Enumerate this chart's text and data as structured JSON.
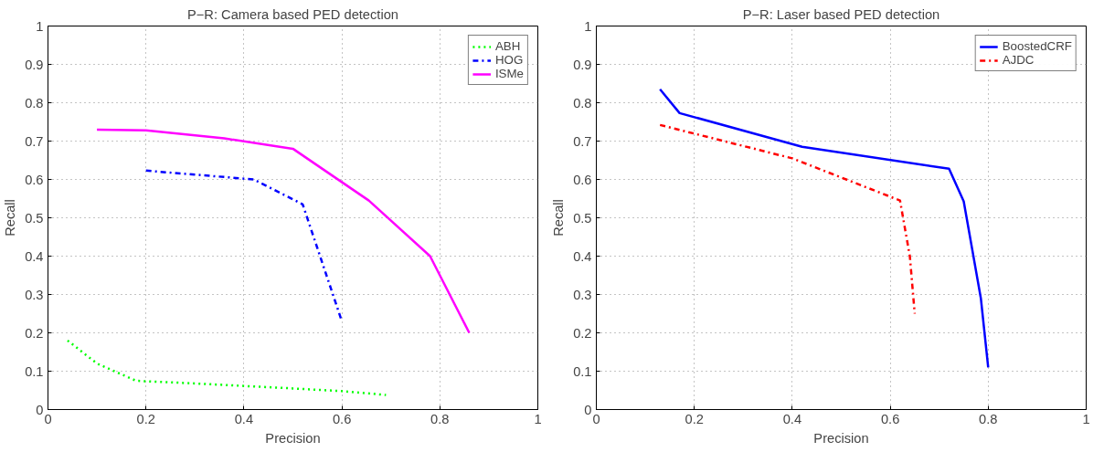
{
  "chart_data": [
    {
      "type": "line",
      "title": "P−R: Camera based PED detection",
      "xlabel": "Precision",
      "ylabel": "Recall",
      "xlim": [
        0,
        1
      ],
      "ylim": [
        0,
        1
      ],
      "xticks": [
        0,
        0.2,
        0.4,
        0.6,
        0.8,
        1
      ],
      "yticks": [
        0,
        0.1,
        0.2,
        0.3,
        0.4,
        0.5,
        0.6,
        0.7,
        0.8,
        0.9,
        1
      ],
      "grid": true,
      "legend": "top right",
      "series": [
        {
          "name": "ABH",
          "color": "#00ff00",
          "line_style": "dotted",
          "x": [
            0.04,
            0.1,
            0.18,
            0.3,
            0.5,
            0.6,
            0.69
          ],
          "values": [
            0.18,
            0.12,
            0.075,
            0.068,
            0.055,
            0.048,
            0.038
          ]
        },
        {
          "name": "HOG",
          "color": "#0000ff",
          "line_style": "dashdot",
          "x": [
            0.2,
            0.42,
            0.52,
            0.6
          ],
          "values": [
            0.623,
            0.6,
            0.535,
            0.23
          ]
        },
        {
          "name": "ISMe",
          "color": "#ff00ff",
          "line_style": "solid",
          "x": [
            0.1,
            0.2,
            0.36,
            0.5,
            0.655,
            0.78,
            0.86
          ],
          "values": [
            0.73,
            0.728,
            0.707,
            0.68,
            0.545,
            0.4,
            0.2
          ]
        }
      ]
    },
    {
      "type": "line",
      "title": "P−R: Laser based PED detection",
      "xlabel": "Precision",
      "ylabel": "Recall",
      "xlim": [
        0,
        1
      ],
      "ylim": [
        0,
        1
      ],
      "xticks": [
        0,
        0.2,
        0.4,
        0.6,
        0.8,
        1
      ],
      "yticks": [
        0,
        0.1,
        0.2,
        0.3,
        0.4,
        0.5,
        0.6,
        0.7,
        0.8,
        0.9,
        1
      ],
      "grid": true,
      "legend": "top right",
      "series": [
        {
          "name": "BoostedCRF",
          "color": "#0000ff",
          "line_style": "solid",
          "x": [
            0.13,
            0.17,
            0.42,
            0.72,
            0.75,
            0.785,
            0.8
          ],
          "values": [
            0.835,
            0.773,
            0.685,
            0.628,
            0.543,
            0.29,
            0.11
          ]
        },
        {
          "name": "AJDC",
          "color": "#ff0000",
          "line_style": "dashdot",
          "x": [
            0.13,
            0.4,
            0.62,
            0.64,
            0.65
          ],
          "values": [
            0.742,
            0.655,
            0.545,
            0.4,
            0.25
          ]
        }
      ]
    }
  ]
}
